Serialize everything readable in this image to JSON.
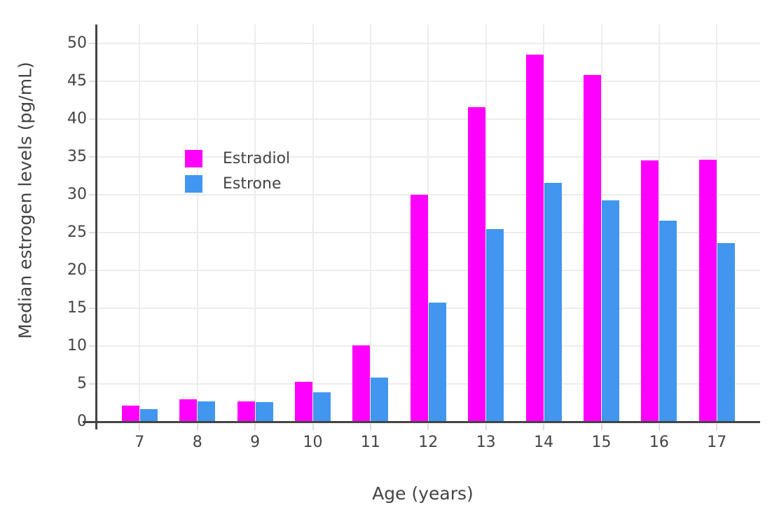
{
  "chart_data": {
    "type": "bar",
    "title": "",
    "categories": [
      7,
      8,
      9,
      10,
      11,
      12,
      13,
      14,
      15,
      16,
      17
    ],
    "series": [
      {
        "name": "Estradiol",
        "color": "#FF00FF",
        "values": [
          2.1,
          3.0,
          2.7,
          5.3,
          10.1,
          30.0,
          41.6,
          48.5,
          45.8,
          34.5,
          34.6
        ]
      },
      {
        "name": "Estrone",
        "color": "#4196F0",
        "values": [
          1.7,
          2.7,
          2.6,
          3.9,
          5.8,
          15.7,
          25.5,
          31.6,
          29.3,
          26.6,
          23.6
        ]
      }
    ],
    "xlabel": "Age (years)",
    "ylabel": "Median estrogen levels (pg/mL)",
    "ylim": [
      0,
      50
    ],
    "yticks": [
      0,
      5,
      10,
      15,
      20,
      25,
      30,
      35,
      40,
      45,
      50
    ],
    "grid": true,
    "legend": {
      "position": "inside-top-left",
      "entries": [
        "Estradiol",
        "Estrone"
      ]
    },
    "colors": {
      "background": "#FFFFFF",
      "axis": "#444444",
      "text": "#444444",
      "gridline": "#ECECEC",
      "tick": "#DCDCDC"
    }
  }
}
